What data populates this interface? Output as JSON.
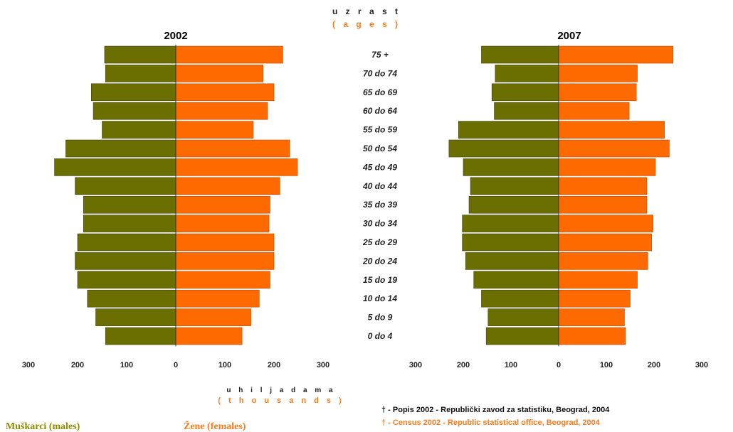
{
  "header": {
    "title": "u z r a s t",
    "title_en": "( a g e s )"
  },
  "axis": {
    "xlabel": "u h i l j a d a m a",
    "xlabel_en": "( t h o u s a n d s )"
  },
  "legend": {
    "males": "Muškarci (males)",
    "females": "Žene (females)"
  },
  "source": {
    "line1": "† - Popis 2002 - Republički zavod za statistiku, Beograd, 2004",
    "line2": "† - Census 2002 - Republic statistical office, Beograd, 2004"
  },
  "colors": {
    "male": "#6b6e00",
    "female": "#ff6a00",
    "male_text": "#8c8c00",
    "female_text": "#ff7a1a"
  },
  "chart_data": [
    {
      "type": "bar",
      "title": "2002",
      "orientation": "horizontal-pyramid",
      "categories": [
        "75 +",
        "70 do 74",
        "65 do 69",
        "60 do 64",
        "55 do 59",
        "50 do 54",
        "45 do 49",
        "40 do 44",
        "35 do 39",
        "30 do 34",
        "25 do 29",
        "20 do 24",
        "15 do 19",
        "10 do 14",
        "5 do 9",
        "0 do 4"
      ],
      "series": [
        {
          "name": "Muškarci (males)",
          "values": [
            145,
            143,
            172,
            168,
            150,
            224,
            247,
            205,
            188,
            188,
            200,
            205,
            200,
            180,
            163,
            143
          ]
        },
        {
          "name": "Žene (females)",
          "values": [
            218,
            178,
            200,
            187,
            158,
            232,
            248,
            212,
            192,
            190,
            200,
            200,
            192,
            170,
            153,
            135
          ]
        }
      ],
      "xlim": [
        -300,
        300
      ],
      "xticks": [
        "300",
        "200",
        "100",
        "0",
        "100",
        "200",
        "300"
      ]
    },
    {
      "type": "bar",
      "title": "2007",
      "orientation": "horizontal-pyramid",
      "categories": [
        "75 +",
        "70 do 74",
        "65 do 69",
        "60 do 64",
        "55 do 59",
        "50 do 54",
        "45 do 49",
        "40 do 44",
        "35 do 39",
        "30 do 34",
        "25 do 29",
        "20 do 24",
        "15 do 19",
        "10 do 14",
        "5 do 9",
        "0 do 4"
      ],
      "series": [
        {
          "name": "Muškarci (males)",
          "values": [
            162,
            133,
            140,
            135,
            210,
            230,
            200,
            185,
            188,
            202,
            202,
            195,
            178,
            162,
            148,
            152
          ]
        },
        {
          "name": "Žene (females)",
          "values": [
            240,
            165,
            163,
            148,
            222,
            232,
            203,
            185,
            185,
            198,
            195,
            187,
            165,
            150,
            138,
            140
          ]
        }
      ],
      "xlim": [
        -300,
        300
      ],
      "xticks": [
        "300",
        "200",
        "100",
        "0",
        "100",
        "200",
        "300"
      ]
    }
  ]
}
